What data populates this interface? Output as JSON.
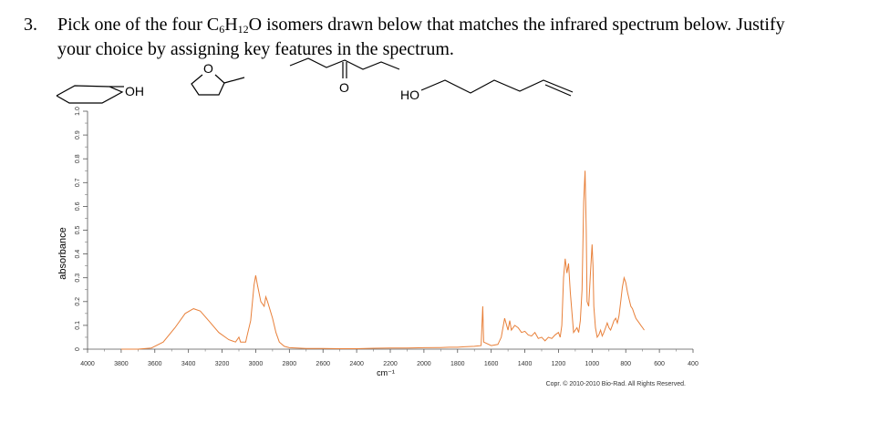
{
  "question": {
    "number": "3.",
    "line1_a": "Pick one of the four C",
    "line1_s1": "6",
    "line1_b": "H",
    "line1_s2": "12",
    "line1_c": "O isomers drawn below that matches the infrared spectrum below. Justify",
    "line2": "your choice by assigning key features in the spectrum."
  },
  "structures": {
    "oh_label": "OH",
    "ho_label": "HO",
    "o_ring": "O",
    "o_ketone": "O",
    "names": [
      "cyclohexanol",
      "2-methyltetrahydrofuran",
      "3-hexanone",
      "hex-5-en-1-ol"
    ]
  },
  "chart_data": {
    "type": "line",
    "title": "",
    "xlabel": "cm⁻¹",
    "ylabel": "absorbance",
    "xlim": [
      4000,
      400
    ],
    "ylim": [
      0,
      1.0
    ],
    "x_reversed": true,
    "line_color": "#e8803a",
    "x_ticks": [
      "4000",
      "3800",
      "3600",
      "3400",
      "3200",
      "3000",
      "2800",
      "2600",
      "2400",
      "2200",
      "2000",
      "1800",
      "1600",
      "1400",
      "1200",
      "1000",
      "800",
      "600",
      "400"
    ],
    "y_ticks": [
      "0",
      "0.1",
      "0.2",
      "0.3",
      "0.4",
      "0.5",
      "0.6",
      "0.7",
      "0.8",
      "0.9",
      "1.0"
    ],
    "copyright": "Copr. © 2010-2010 Bio-Rad. All Rights Reserved.",
    "series": [
      {
        "points": [
          [
            3800,
            0.0
          ],
          [
            3700,
            0.0
          ],
          [
            3620,
            0.005
          ],
          [
            3550,
            0.03
          ],
          [
            3480,
            0.09
          ],
          [
            3420,
            0.15
          ],
          [
            3370,
            0.17
          ],
          [
            3330,
            0.16
          ],
          [
            3280,
            0.12
          ],
          [
            3220,
            0.07
          ],
          [
            3160,
            0.04
          ],
          [
            3120,
            0.03
          ],
          [
            3100,
            0.05
          ],
          [
            3090,
            0.03
          ],
          [
            3060,
            0.03
          ],
          [
            3050,
            0.06
          ],
          [
            3030,
            0.12
          ],
          [
            3010,
            0.27
          ],
          [
            3000,
            0.31
          ],
          [
            2990,
            0.27
          ],
          [
            2970,
            0.2
          ],
          [
            2950,
            0.18
          ],
          [
            2940,
            0.22
          ],
          [
            2930,
            0.2
          ],
          [
            2900,
            0.13
          ],
          [
            2880,
            0.07
          ],
          [
            2860,
            0.03
          ],
          [
            2830,
            0.012
          ],
          [
            2800,
            0.006
          ],
          [
            2700,
            0.003
          ],
          [
            2600,
            0.003
          ],
          [
            2500,
            0.002
          ],
          [
            2400,
            0.002
          ],
          [
            2300,
            0.004
          ],
          [
            2200,
            0.005
          ],
          [
            2100,
            0.005
          ],
          [
            2000,
            0.006
          ],
          [
            1900,
            0.007
          ],
          [
            1850,
            0.008
          ],
          [
            1800,
            0.008
          ],
          [
            1760,
            0.01
          ],
          [
            1700,
            0.012
          ],
          [
            1660,
            0.015
          ],
          [
            1650,
            0.18
          ],
          [
            1645,
            0.03
          ],
          [
            1600,
            0.015
          ],
          [
            1560,
            0.02
          ],
          [
            1540,
            0.05
          ],
          [
            1520,
            0.13
          ],
          [
            1500,
            0.08
          ],
          [
            1490,
            0.12
          ],
          [
            1480,
            0.08
          ],
          [
            1460,
            0.1
          ],
          [
            1440,
            0.09
          ],
          [
            1420,
            0.07
          ],
          [
            1400,
            0.075
          ],
          [
            1380,
            0.06
          ],
          [
            1360,
            0.055
          ],
          [
            1340,
            0.07
          ],
          [
            1320,
            0.045
          ],
          [
            1300,
            0.05
          ],
          [
            1280,
            0.035
          ],
          [
            1260,
            0.05
          ],
          [
            1240,
            0.045
          ],
          [
            1220,
            0.06
          ],
          [
            1200,
            0.07
          ],
          [
            1190,
            0.05
          ],
          [
            1180,
            0.1
          ],
          [
            1170,
            0.3
          ],
          [
            1160,
            0.38
          ],
          [
            1150,
            0.32
          ],
          [
            1140,
            0.36
          ],
          [
            1130,
            0.24
          ],
          [
            1110,
            0.07
          ],
          [
            1100,
            0.08
          ],
          [
            1090,
            0.09
          ],
          [
            1080,
            0.07
          ],
          [
            1070,
            0.12
          ],
          [
            1060,
            0.25
          ],
          [
            1050,
            0.62
          ],
          [
            1042,
            0.75
          ],
          [
            1035,
            0.5
          ],
          [
            1030,
            0.2
          ],
          [
            1020,
            0.18
          ],
          [
            1010,
            0.32
          ],
          [
            1000,
            0.44
          ],
          [
            995,
            0.35
          ],
          [
            990,
            0.18
          ],
          [
            980,
            0.09
          ],
          [
            970,
            0.05
          ],
          [
            960,
            0.06
          ],
          [
            950,
            0.08
          ],
          [
            940,
            0.055
          ],
          [
            930,
            0.07
          ],
          [
            920,
            0.09
          ],
          [
            910,
            0.11
          ],
          [
            900,
            0.09
          ],
          [
            890,
            0.08
          ],
          [
            880,
            0.1
          ],
          [
            870,
            0.12
          ],
          [
            860,
            0.13
          ],
          [
            850,
            0.11
          ],
          [
            840,
            0.14
          ],
          [
            830,
            0.2
          ],
          [
            820,
            0.26
          ],
          [
            810,
            0.3
          ],
          [
            800,
            0.28
          ],
          [
            790,
            0.24
          ],
          [
            780,
            0.21
          ],
          [
            770,
            0.18
          ],
          [
            760,
            0.17
          ],
          [
            750,
            0.15
          ],
          [
            740,
            0.13
          ],
          [
            730,
            0.12
          ],
          [
            720,
            0.11
          ],
          [
            710,
            0.1
          ],
          [
            700,
            0.09
          ],
          [
            690,
            0.08
          ]
        ]
      }
    ]
  }
}
